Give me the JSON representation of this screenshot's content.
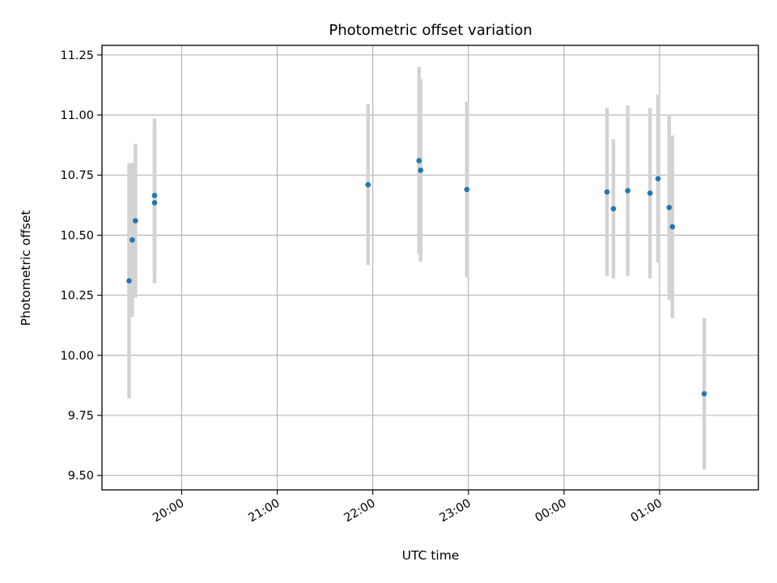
{
  "chart_data": {
    "type": "scatter",
    "title": "Photometric offset variation",
    "xlabel": "UTC time",
    "ylabel": "Photometric offset",
    "x_unit": "time (HH:MM, UTC) across midnight",
    "xlim": [
      "19:10",
      "02:02"
    ],
    "ylim": [
      9.44,
      11.29
    ],
    "yticks": [
      9.5,
      9.75,
      10.0,
      10.25,
      10.5,
      10.75,
      11.0,
      11.25
    ],
    "ytick_labels": [
      "9.50",
      "9.75",
      "10.00",
      "10.25",
      "10.50",
      "10.75",
      "11.00",
      "11.25"
    ],
    "xticks": [
      "20:00",
      "21:00",
      "22:00",
      "23:00",
      "00:00",
      "01:00"
    ],
    "xtick_labels": [
      "20:00",
      "21:00",
      "22:00",
      "23:00",
      "00:00",
      "01:00"
    ],
    "grid": true,
    "point_color": "#1f77b4",
    "errorbar_color": "#d3d3d3",
    "points": [
      {
        "x": "19:27",
        "y": 10.31,
        "err": 0.49
      },
      {
        "x": "19:29",
        "y": 10.48,
        "err": 0.32
      },
      {
        "x": "19:31",
        "y": 10.56,
        "err": 0.32
      },
      {
        "x": "19:43",
        "y": 10.665,
        "err": 0.32
      },
      {
        "x": "19:43",
        "y": 10.635,
        "err": 0.335
      },
      {
        "x": "21:57",
        "y": 10.71,
        "err": 0.335
      },
      {
        "x": "22:29",
        "y": 10.81,
        "err": 0.39
      },
      {
        "x": "22:30",
        "y": 10.77,
        "err": 0.38
      },
      {
        "x": "22:59",
        "y": 10.69,
        "err": 0.365
      },
      {
        "x": "00:27",
        "y": 10.68,
        "err": 0.35
      },
      {
        "x": "00:31",
        "y": 10.61,
        "err": 0.29
      },
      {
        "x": "00:40",
        "y": 10.685,
        "err": 0.355
      },
      {
        "x": "00:54",
        "y": 10.675,
        "err": 0.355
      },
      {
        "x": "00:59",
        "y": 10.735,
        "err": 0.35
      },
      {
        "x": "01:06",
        "y": 10.615,
        "err": 0.385
      },
      {
        "x": "01:08",
        "y": 10.535,
        "err": 0.38
      },
      {
        "x": "01:28",
        "y": 9.84,
        "err": 0.315
      }
    ]
  }
}
